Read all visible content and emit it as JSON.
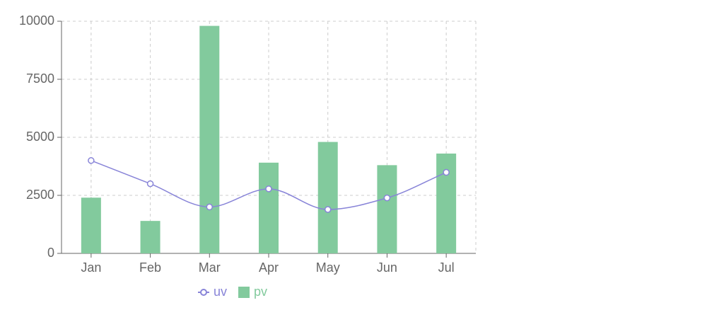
{
  "chart_data": {
    "type": "composed",
    "categories": [
      "Jan",
      "Feb",
      "Mar",
      "Apr",
      "May",
      "Jun",
      "Jul"
    ],
    "series": [
      {
        "name": "uv",
        "type": "line",
        "color": "#8884d8",
        "values": [
          4000,
          3000,
          2000,
          2780,
          1890,
          2390,
          3490
        ]
      },
      {
        "name": "pv",
        "type": "bar",
        "color": "#82ca9d",
        "values": [
          2400,
          1398,
          9800,
          3908,
          4800,
          3800,
          4300
        ]
      }
    ],
    "ylim": [
      0,
      10000
    ],
    "yticks": [
      0,
      2500,
      5000,
      7500,
      10000
    ],
    "grid": true
  }
}
